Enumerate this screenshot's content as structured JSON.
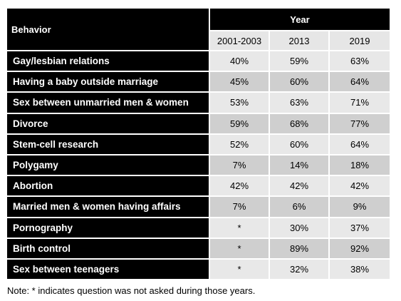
{
  "table": {
    "behavior_header": "Behavior",
    "year_header": "Year",
    "years": [
      "2001-2003",
      "2013",
      "2019"
    ],
    "rows": [
      {
        "behavior": "Gay/lesbian relations",
        "values": [
          "40%",
          "59%",
          "63%"
        ]
      },
      {
        "behavior": "Having a baby outside marriage",
        "values": [
          "45%",
          "60%",
          "64%"
        ]
      },
      {
        "behavior": "Sex between unmarried men & women",
        "values": [
          "53%",
          "63%",
          "71%"
        ]
      },
      {
        "behavior": "Divorce",
        "values": [
          "59%",
          "68%",
          "77%"
        ]
      },
      {
        "behavior": "Stem-cell research",
        "values": [
          "52%",
          "60%",
          "64%"
        ]
      },
      {
        "behavior": "Polygamy",
        "values": [
          "7%",
          "14%",
          "18%"
        ]
      },
      {
        "behavior": "Abortion",
        "values": [
          "42%",
          "42%",
          "42%"
        ]
      },
      {
        "behavior": "Married men & women having affairs",
        "values": [
          "7%",
          "6%",
          "9%"
        ]
      },
      {
        "behavior": "Pornography",
        "values": [
          "*",
          "30%",
          "37%"
        ]
      },
      {
        "behavior": "Birth control",
        "values": [
          "*",
          "89%",
          "92%"
        ]
      },
      {
        "behavior": "Sex between teenagers",
        "values": [
          "*",
          "32%",
          "38%"
        ]
      }
    ]
  },
  "note": "Note: * indicates question was not asked during those years.",
  "colors": {
    "header_bg": "#000000",
    "header_text": "#ffffff",
    "row_light": "#e8e8e8",
    "row_dark": "#cfcfcf"
  }
}
